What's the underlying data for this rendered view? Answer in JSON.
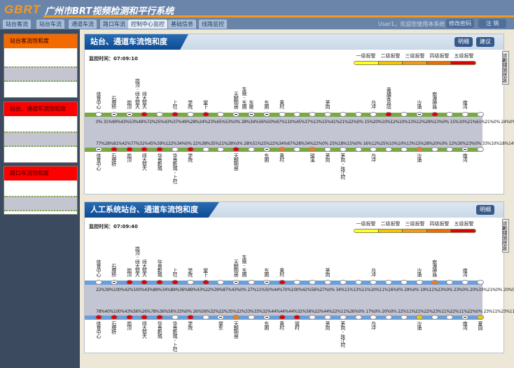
{
  "header": {
    "logo": "GBRT",
    "title": "广州市BRT视频检测和平行系统",
    "user_text": "User1，欢迎您使用本系统！",
    "change_pwd": "修改密码",
    "logout": "注 销"
  },
  "tabs": [
    "站台客流",
    "站台车流",
    "通道车流",
    "路口车流",
    "控制中心监控",
    "基础信息",
    "线路监控"
  ],
  "active_tab": 4,
  "sidebar": [
    "站台客流饱和度",
    "站台、通道车流饱和度",
    "路口车流饱和度"
  ],
  "colors": {
    "red": "#e00000",
    "orange": "#f08010",
    "yellow": "#e8d000",
    "white": "#ffffff",
    "green": "#7aa843",
    "blue": "#6a9fd8"
  },
  "legend": {
    "labels": [
      "一级报警",
      "二级报警",
      "三级报警",
      "四级报警",
      "五级报警"
    ],
    "colors": [
      "#ffff20",
      "#f5c400",
      "#f59a10",
      "#f06a00",
      "#e00000"
    ]
  },
  "panels": [
    {
      "title": "站台、通道车流饱和度",
      "time_label": "监控时间：07:09:10",
      "buttons": [
        "明细",
        "建议"
      ],
      "side_tab": "诊断预测信息",
      "track": "green",
      "top_pct": "0% 31%90%43%53%49%72%25%43%37%49%28%24%23%65%53%0% 28%34%56%50%67%110%45%37%13%15%41%21%22%0% 15%20%10%12%10%13%12%29%13%0% 15%10%21%61%21%0% 24%0% 17%23%",
      "bottom_pct": "77%28%81%42%77%32%45%39%122%34%0% 22%38%35%21%28%0% 28%51%25%22%34%67%28%34%22%0% 25%18%15%0% 16%12%25%10%10%13%15%28%20%0% 12%30%23%0% 33%10%18%14%25%0%",
      "top": [
        [
          "体育中心",
          "white"
        ],
        [
          "石牌桥",
          "dash"
        ],
        [
          "岗顶",
          "dash"
        ],
        [
          "师大暨大",
          "red",
          "岗顶-师大暨大"
        ],
        [
          "",
          "white"
        ],
        [
          "上社",
          "red"
        ],
        [
          "学院",
          "white"
        ],
        [
          "棠下",
          "red"
        ],
        [
          "",
          "white"
        ],
        [
          "天朗明居",
          "dash"
        ],
        [
          "车陂",
          "dash",
          "车陂-东圃"
        ],
        [
          "东圃",
          "dash"
        ],
        [
          "黄村",
          "white"
        ],
        [
          "",
          "white"
        ],
        [
          "",
          "white"
        ],
        [
          "茅岗",
          "white"
        ],
        [
          "",
          "white"
        ],
        [
          "",
          "white"
        ],
        [
          "乌冲",
          "white"
        ],
        [
          "黄埔客运站",
          "red"
        ],
        [
          "",
          "white"
        ],
        [
          "沙涌",
          "dash"
        ],
        [
          "南海神庙",
          "red"
        ],
        [
          "",
          "white"
        ],
        [
          "南湾",
          "white"
        ],
        [
          "",
          "white"
        ]
      ],
      "bottom": [
        [
          "体育中心",
          "dash"
        ],
        [
          "石牌桥",
          "red"
        ],
        [
          "岗顶",
          "red"
        ],
        [
          "师大暨大",
          "red"
        ],
        [
          "华景新城",
          "red"
        ],
        [
          "华景新城-上社",
          "white"
        ],
        [
          "学院",
          "red"
        ],
        [
          "",
          "white"
        ],
        [
          "",
          "white"
        ],
        [
          "天朗明居",
          "red"
        ],
        [
          "",
          "white"
        ],
        [
          "东圃",
          "dash"
        ],
        [
          "黄村",
          "orange"
        ],
        [
          "",
          "white"
        ],
        [
          "骏溪",
          "orange"
        ],
        [
          "茅岗",
          "white"
        ],
        [
          "茅岗-珠江村",
          "white"
        ],
        [
          "",
          "white"
        ],
        [
          "乌冲",
          "white"
        ],
        [
          "",
          "white"
        ],
        [
          "",
          "white"
        ],
        [
          "沙涌",
          "orange"
        ],
        [
          "",
          "white"
        ],
        [
          "",
          "white"
        ],
        [
          "南湾",
          "dash"
        ],
        [
          "",
          "white"
        ]
      ]
    },
    {
      "title": "人工系统站台、通道车流饱和度",
      "time_label": "监控时间：07:09:40",
      "buttons": [
        "明细"
      ],
      "side_tab": "诊断预测信息",
      "track": "blue",
      "top_pct": "22%39%100%42%100%43%89%34%89%36%89%43%22%39%87%43%0% 27%11%50%44%70%100%42%56%27%0% 34%11%13%11%10%11%16%0% 29%0% 19%11%23%0% 23%0% 20%33%21%0% 20%0% 20%0%",
      "bottom_pct": "78%40%100%43%56%26%78%36%56%33%0% 26%56%32%22%35%22%33%33%32%44%44%44%32%56%22%44%22%11%26%0% 17%0% 20%0% 22%11%21%22%23%11%22%11%22%0% 23%11%23%11%23%11%",
      "top": [
        [
          "体育中心",
          "white"
        ],
        [
          "石牌桥",
          "dash"
        ],
        [
          "岗顶",
          "red"
        ],
        [
          "师大暨大",
          "red",
          "岗顶-师大暨大"
        ],
        [
          "华景新城",
          "red"
        ],
        [
          "上社",
          "red"
        ],
        [
          "学院",
          "white"
        ],
        [
          "棠下",
          "red"
        ],
        [
          "",
          "white"
        ],
        [
          "天朗明居",
          "dash"
        ],
        [
          "",
          "white",
          "车陂-东圃"
        ],
        [
          "东圃",
          "dash"
        ],
        [
          "黄村",
          "red"
        ],
        [
          "",
          "white"
        ],
        [
          "",
          "white"
        ],
        [
          "茅岗",
          "white"
        ],
        [
          "",
          "white"
        ],
        [
          "",
          "white"
        ],
        [
          "乌冲",
          "white"
        ],
        [
          "",
          "white"
        ],
        [
          "",
          "white"
        ],
        [
          "沙涌",
          "white"
        ],
        [
          "南海神庙",
          "orange"
        ],
        [
          "",
          "white"
        ],
        [
          "南湾",
          "white"
        ],
        [
          "",
          "white"
        ]
      ],
      "bottom": [
        [
          "体育中心",
          "red"
        ],
        [
          "石牌桥",
          "red"
        ],
        [
          "岗顶",
          "red"
        ],
        [
          "师大暨大",
          "red"
        ],
        [
          "华景新城",
          "red"
        ],
        [
          "华景新城-上社",
          "white"
        ],
        [
          "学院",
          "red"
        ],
        [
          "",
          "white"
        ],
        [
          "棠东",
          "dash"
        ],
        [
          "天朗明居",
          "orange"
        ],
        [
          "",
          "white"
        ],
        [
          "东圃",
          "dash"
        ],
        [
          "黄村",
          "red"
        ],
        [
          "骏村",
          "red"
        ],
        [
          "",
          "white"
        ],
        [
          "茅岗",
          "white"
        ],
        [
          "茅岗-珠江村",
          "white"
        ],
        [
          "",
          "white"
        ],
        [
          "乌冲",
          "white"
        ],
        [
          "",
          "white"
        ],
        [
          "",
          "white"
        ],
        [
          "沙涌",
          "yellow"
        ],
        [
          "",
          "white"
        ],
        [
          "",
          "white"
        ],
        [
          "南湾",
          "dash"
        ],
        [
          "夏园",
          "yellow"
        ]
      ]
    }
  ]
}
